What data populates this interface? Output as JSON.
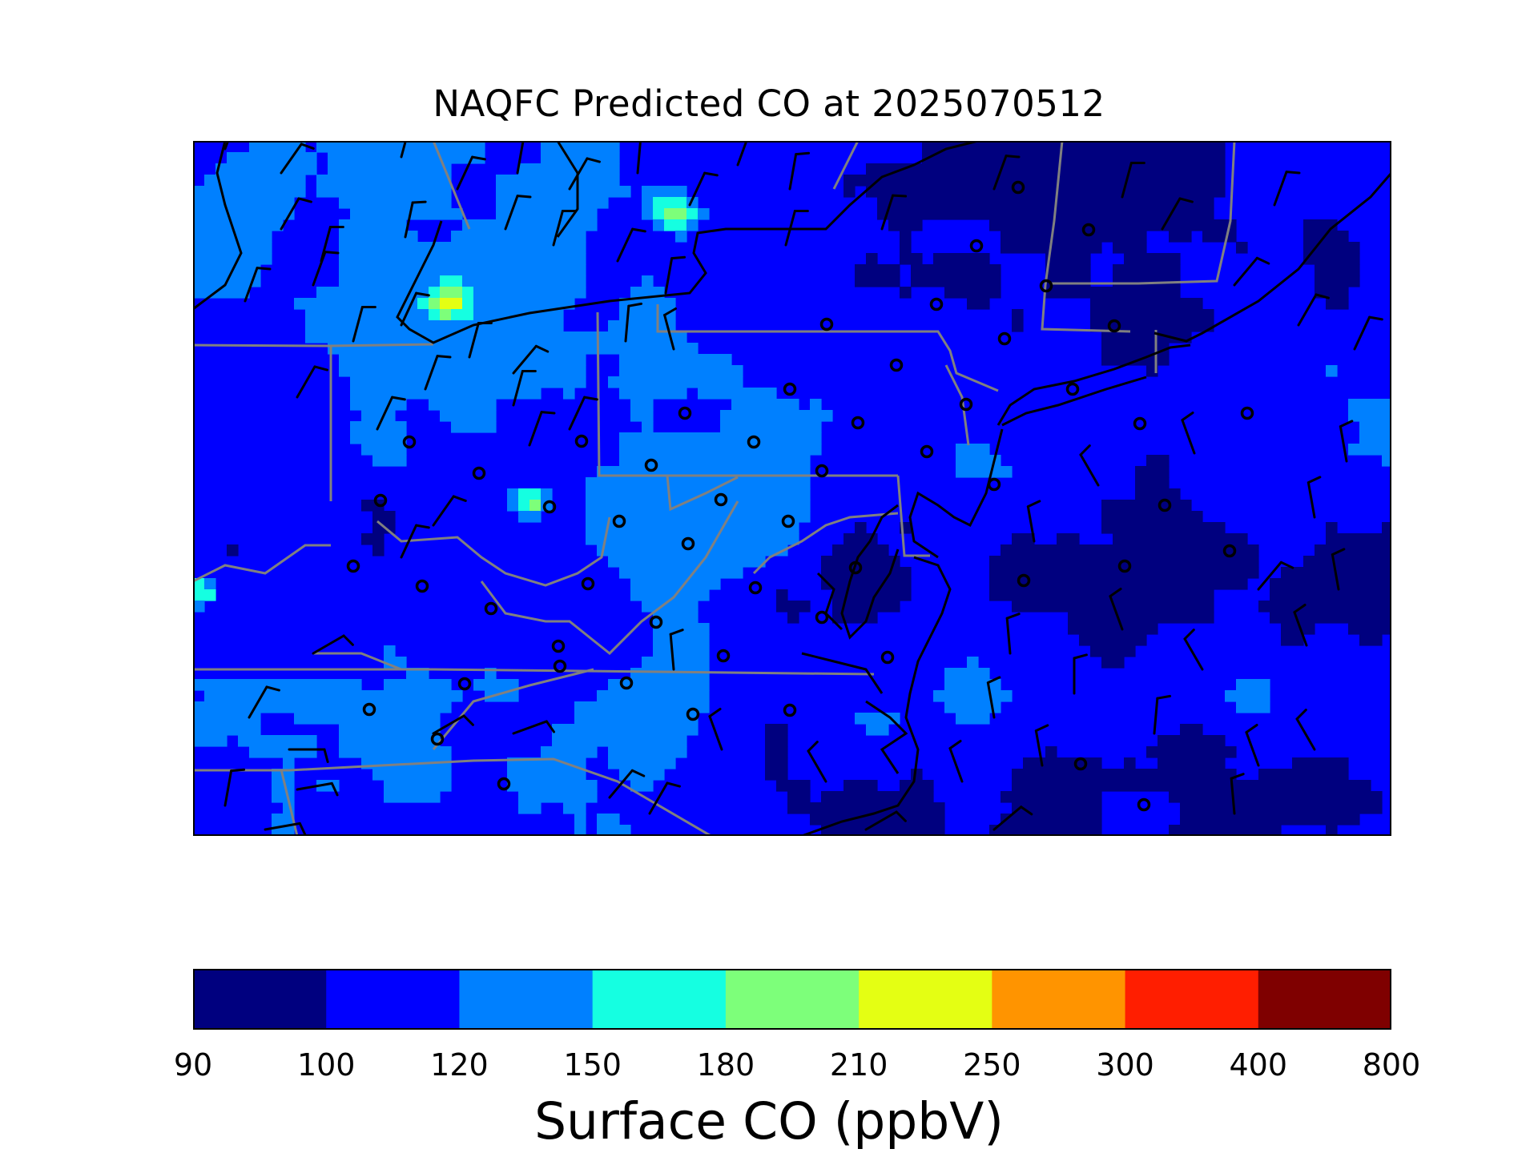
{
  "title": "NAQFC Predicted CO at 2025070512",
  "colorbar": {
    "label": "Surface CO (ppbV)",
    "bounds": [
      "90",
      "100",
      "120",
      "150",
      "180",
      "210",
      "250",
      "300",
      "400",
      "800"
    ],
    "colors": [
      "#00007f",
      "#0000ff",
      "#0080ff",
      "#15ffe1",
      "#7dff7a",
      "#e4ff13",
      "#ff9400",
      "#ff1e00",
      "#7f0000"
    ]
  },
  "map": {
    "region": "Mid-Atlantic / Northeast United States",
    "layers": [
      "surface CO concentration field",
      "state boundaries",
      "coastlines",
      "wind barbs",
      "calm-wind station circles"
    ],
    "state_boundary_color": "#808080",
    "coastline_color": "#000000"
  }
}
